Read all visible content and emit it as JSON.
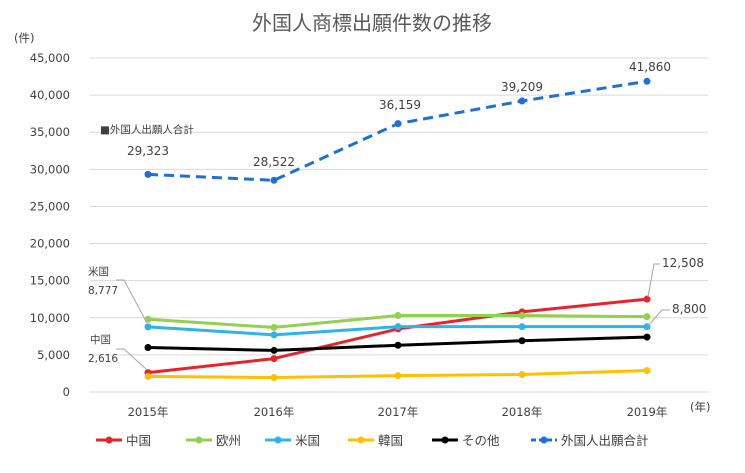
{
  "chart_data": {
    "type": "line",
    "title": "外国人商標出願件数の推移",
    "ylabel": "(件)",
    "xlabel": "(年)",
    "ylim": [
      0,
      45000
    ],
    "yticks": [
      "0",
      "5,000",
      "10,000",
      "15,000",
      "20,000",
      "25,000",
      "30,000",
      "35,000",
      "40,000",
      "45,000"
    ],
    "categories": [
      "2015年",
      "2016年",
      "2017年",
      "2018年",
      "2019年"
    ],
    "grid": "horizontal",
    "legend_position": "bottom",
    "series": [
      {
        "name": "中国",
        "color": "#e8232a",
        "values": [
          2616,
          4500,
          8500,
          10800,
          12508
        ]
      },
      {
        "name": "欧州",
        "color": "#92d050",
        "values": [
          9800,
          8700,
          10300,
          10300,
          10150
        ]
      },
      {
        "name": "米国",
        "color": "#2cb5e8",
        "values": [
          8777,
          7700,
          8800,
          8800,
          8800
        ]
      },
      {
        "name": "韓国",
        "color": "#ffc000",
        "values": [
          2100,
          1950,
          2200,
          2350,
          2900
        ]
      },
      {
        "name": "その他",
        "color": "#000000",
        "values": [
          6000,
          5600,
          6300,
          6900,
          7400
        ]
      },
      {
        "name": "外国人出願合計",
        "color": "#1f6fd8",
        "dashed": true,
        "values": [
          29323,
          28522,
          36159,
          39209,
          41860
        ]
      }
    ],
    "annotations": {
      "total_label": "■外国人出願人合計",
      "total_values": [
        "29,323",
        "28,522",
        "36,159",
        "39,209",
        "41,860"
      ],
      "china_name": "中国",
      "china_value": "2,616",
      "us_name": "米国",
      "us_value": "8,777",
      "china_2019": "12,508",
      "us_2019": "8,800"
    }
  }
}
